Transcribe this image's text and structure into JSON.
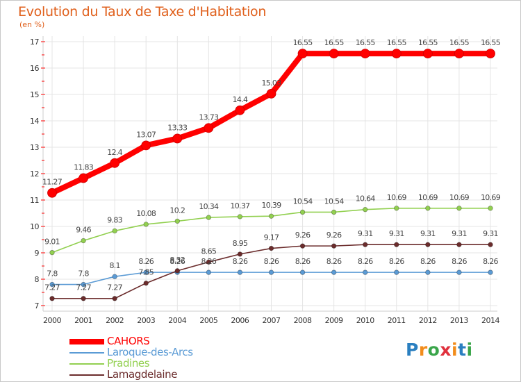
{
  "title": "Evolution du Taux de Taxe d'Habitation",
  "subtitle": "(en %)",
  "logo_text": "Proxiti",
  "colors": {
    "title": "#e0601c",
    "CAHORS": "#ff0000",
    "Laroque-des-Arcs": "#5b9bd5",
    "Pradines": "#92d050",
    "Lamagdelaine": "#6b2c2c",
    "grid": "#e4e4e4"
  },
  "chart_data": {
    "type": "line",
    "title": "Evolution du Taux de Taxe d'Habitation",
    "ylabel": "(en %)",
    "x": [
      "2000",
      "2001",
      "2002",
      "2003",
      "2004",
      "2005",
      "2006",
      "2007",
      "2008",
      "2009",
      "2010",
      "2011",
      "2012",
      "2013",
      "2014"
    ],
    "yticks": [
      "7",
      "8",
      "9",
      "10",
      "11",
      "12",
      "13",
      "14",
      "15",
      "16",
      "17"
    ],
    "ylim": [
      7,
      17
    ],
    "grid": true,
    "legend_position": "bottom-left",
    "series": [
      {
        "name": "CAHORS",
        "color": "#ff0000",
        "values": [
          11.27,
          11.83,
          12.4,
          13.07,
          13.33,
          13.73,
          14.4,
          15.03,
          16.55,
          16.55,
          16.55,
          16.55,
          16.55,
          16.55,
          16.55
        ],
        "labels": [
          "11.27",
          "11.83",
          "12.4",
          "13.07",
          "13.33",
          "13.73",
          "14.4",
          "15.03",
          "16.55",
          "16.55",
          "16.55",
          "16.55",
          "16.55",
          "16.55",
          "16.55"
        ]
      },
      {
        "name": "Laroque-des-Arcs",
        "color": "#5b9bd5",
        "values": [
          7.8,
          7.8,
          8.1,
          8.26,
          8.26,
          8.26,
          8.26,
          8.26,
          8.26,
          8.26,
          8.26,
          8.26,
          8.26,
          8.26,
          8.26
        ],
        "labels": [
          "7.8",
          "7.8",
          "8.1",
          "8.26",
          "8.26",
          "8.26",
          "8.26",
          "8.26",
          "8.26",
          "8.26",
          "8.26",
          "8.26",
          "8.26",
          "8.26",
          "8.26"
        ]
      },
      {
        "name": "Pradines",
        "color": "#92d050",
        "values": [
          9.01,
          9.46,
          9.83,
          10.08,
          10.2,
          10.34,
          10.37,
          10.39,
          10.54,
          10.54,
          10.64,
          10.69,
          10.69,
          10.69,
          10.69
        ],
        "labels": [
          "9.01",
          "9.46",
          "9.83",
          "10.08",
          "10.2",
          "10.34",
          "10.37",
          "10.39",
          "10.54",
          "10.54",
          "10.64",
          "10.69",
          "10.69",
          "10.69",
          "10.69"
        ]
      },
      {
        "name": "Lamagdelaine",
        "color": "#6b2c2c",
        "values": [
          7.27,
          7.27,
          7.27,
          7.85,
          8.32,
          8.65,
          8.95,
          9.17,
          9.26,
          9.26,
          9.31,
          9.31,
          9.31,
          9.31,
          9.31
        ],
        "labels": [
          "7.27",
          "7.27",
          "7.27",
          "7.85",
          "8.32",
          "8.65",
          "8.95",
          "9.17",
          "9.26",
          "9.26",
          "9.31",
          "9.31",
          "9.31",
          "9.31",
          "9.31"
        ]
      }
    ]
  }
}
